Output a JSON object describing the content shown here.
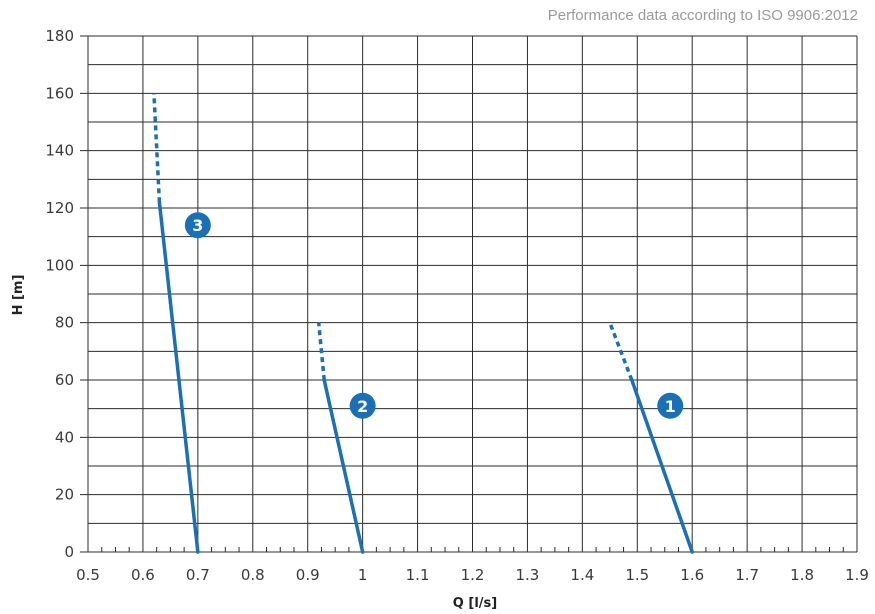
{
  "header_note": "Performance data according to ISO 9906:2012",
  "colors": {
    "curve": "#1a6fb5",
    "grid": "#2b2b2b",
    "text": "#3a3a3a"
  },
  "chart_data": {
    "type": "line",
    "title": "",
    "xlabel": "Q [l/s]",
    "ylabel": "H [m]",
    "xlim": [
      0.5,
      1.9
    ],
    "ylim": [
      0,
      180
    ],
    "x_ticks": [
      "0.5",
      "0.6",
      "0.7",
      "0.8",
      "0.9",
      "1",
      "1.1",
      "1.2",
      "1.3",
      "1.4",
      "1.5",
      "1.6",
      "1.7",
      "1.8",
      "1.9"
    ],
    "y_ticks": [
      "0",
      "20",
      "40",
      "60",
      "80",
      "100",
      "120",
      "140",
      "160",
      "180"
    ],
    "grid": true,
    "series": [
      {
        "marker": "1",
        "solid": [
          [
            1.6,
            0
          ],
          [
            1.49,
            60
          ]
        ],
        "dashed": [
          [
            1.49,
            60
          ],
          [
            1.45,
            80
          ]
        ],
        "label_at": [
          1.56,
          51
        ]
      },
      {
        "marker": "2",
        "solid": [
          [
            1.0,
            0
          ],
          [
            0.93,
            60
          ]
        ],
        "dashed": [
          [
            0.93,
            60
          ],
          [
            0.92,
            80
          ]
        ],
        "label_at": [
          1.0,
          51
        ]
      },
      {
        "marker": "3",
        "solid": [
          [
            0.7,
            0
          ],
          [
            0.63,
            122
          ]
        ],
        "dashed": [
          [
            0.63,
            122
          ],
          [
            0.62,
            160
          ]
        ],
        "label_at": [
          0.7,
          114
        ]
      }
    ]
  }
}
